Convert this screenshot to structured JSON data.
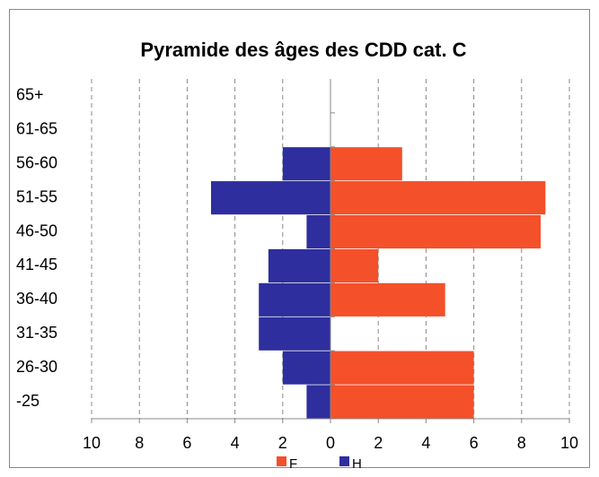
{
  "chart_data": {
    "type": "pyramid",
    "title": "Pyramide des âges des CDD cat. C",
    "categories": [
      "-25",
      "26-30",
      "31-35",
      "36-40",
      "41-45",
      "46-50",
      "51-55",
      "56-60",
      "61-65",
      "65+"
    ],
    "series": [
      {
        "name": "F",
        "color": "#f4502a",
        "values": [
          6,
          6,
          0,
          4.8,
          2,
          8.8,
          9,
          3,
          0,
          0
        ]
      },
      {
        "name": "H",
        "color": "#2e2e9e",
        "values": [
          -1,
          -2,
          -3,
          -3,
          -2.6,
          -1,
          -5,
          -2,
          0,
          0
        ]
      }
    ],
    "xlim": [
      -10,
      10
    ],
    "xticks": [
      {
        "value": -10,
        "label": "10"
      },
      {
        "value": -8,
        "label": "8"
      },
      {
        "value": -6,
        "label": "6"
      },
      {
        "value": -4,
        "label": "4"
      },
      {
        "value": -2,
        "label": "2"
      },
      0,
      2,
      4,
      6,
      8,
      10
    ],
    "grid": true,
    "legend": "bottom"
  }
}
